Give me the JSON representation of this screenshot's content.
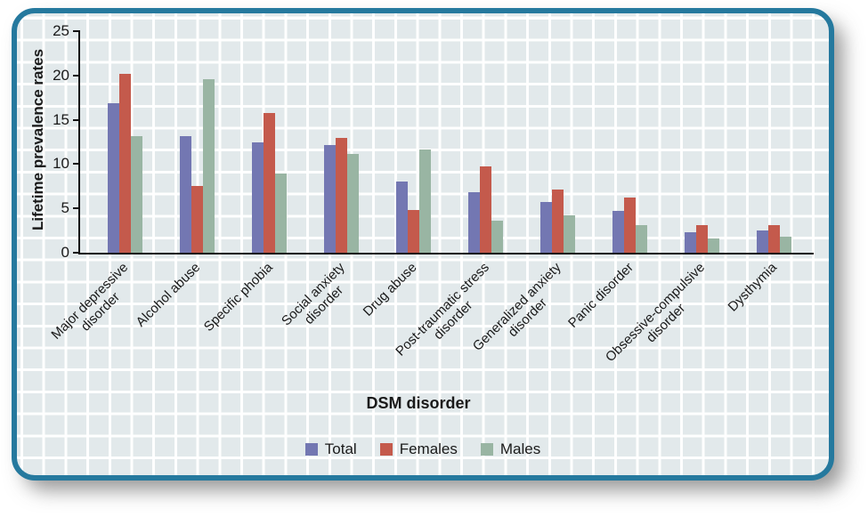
{
  "chart_data": {
    "type": "bar",
    "title": "",
    "xlabel": "DSM disorder",
    "ylabel": "Lifetime prevalence rates",
    "ylim": [
      0,
      25
    ],
    "yticks": [
      0,
      5,
      10,
      15,
      20,
      25
    ],
    "grid": "decorative graph-paper background, white lines on pale blue-grey",
    "legend_position": "bottom",
    "categories": [
      "Major depressive\ndisorder",
      "Alcohol abuse",
      "Specific phobia",
      "Social anxiety\ndisorder",
      "Drug abuse",
      "Post-traumatic stress\ndisorder",
      "Generalized anxiety\ndisorder",
      "Panic disorder",
      "Obsessive-compulsive\ndisorder",
      "Dysthymia"
    ],
    "series": [
      {
        "name": "Total",
        "color": "#7377b2",
        "values": [
          16.9,
          13.2,
          12.5,
          12.1,
          8.0,
          6.8,
          5.7,
          4.7,
          2.3,
          2.5
        ]
      },
      {
        "name": "Females",
        "color": "#c45a4c",
        "values": [
          20.2,
          7.5,
          15.8,
          13.0,
          4.8,
          9.7,
          7.1,
          6.2,
          3.1,
          3.1
        ]
      },
      {
        "name": "Males",
        "color": "#99b5a3",
        "values": [
          13.2,
          19.6,
          8.9,
          11.1,
          11.6,
          3.6,
          4.2,
          3.1,
          1.6,
          1.8
        ]
      }
    ],
    "panel": {
      "background": "#e2e9eb",
      "grid_color": "#ffffff",
      "border_color": "#25799e",
      "axis_color": "#111111"
    }
  }
}
